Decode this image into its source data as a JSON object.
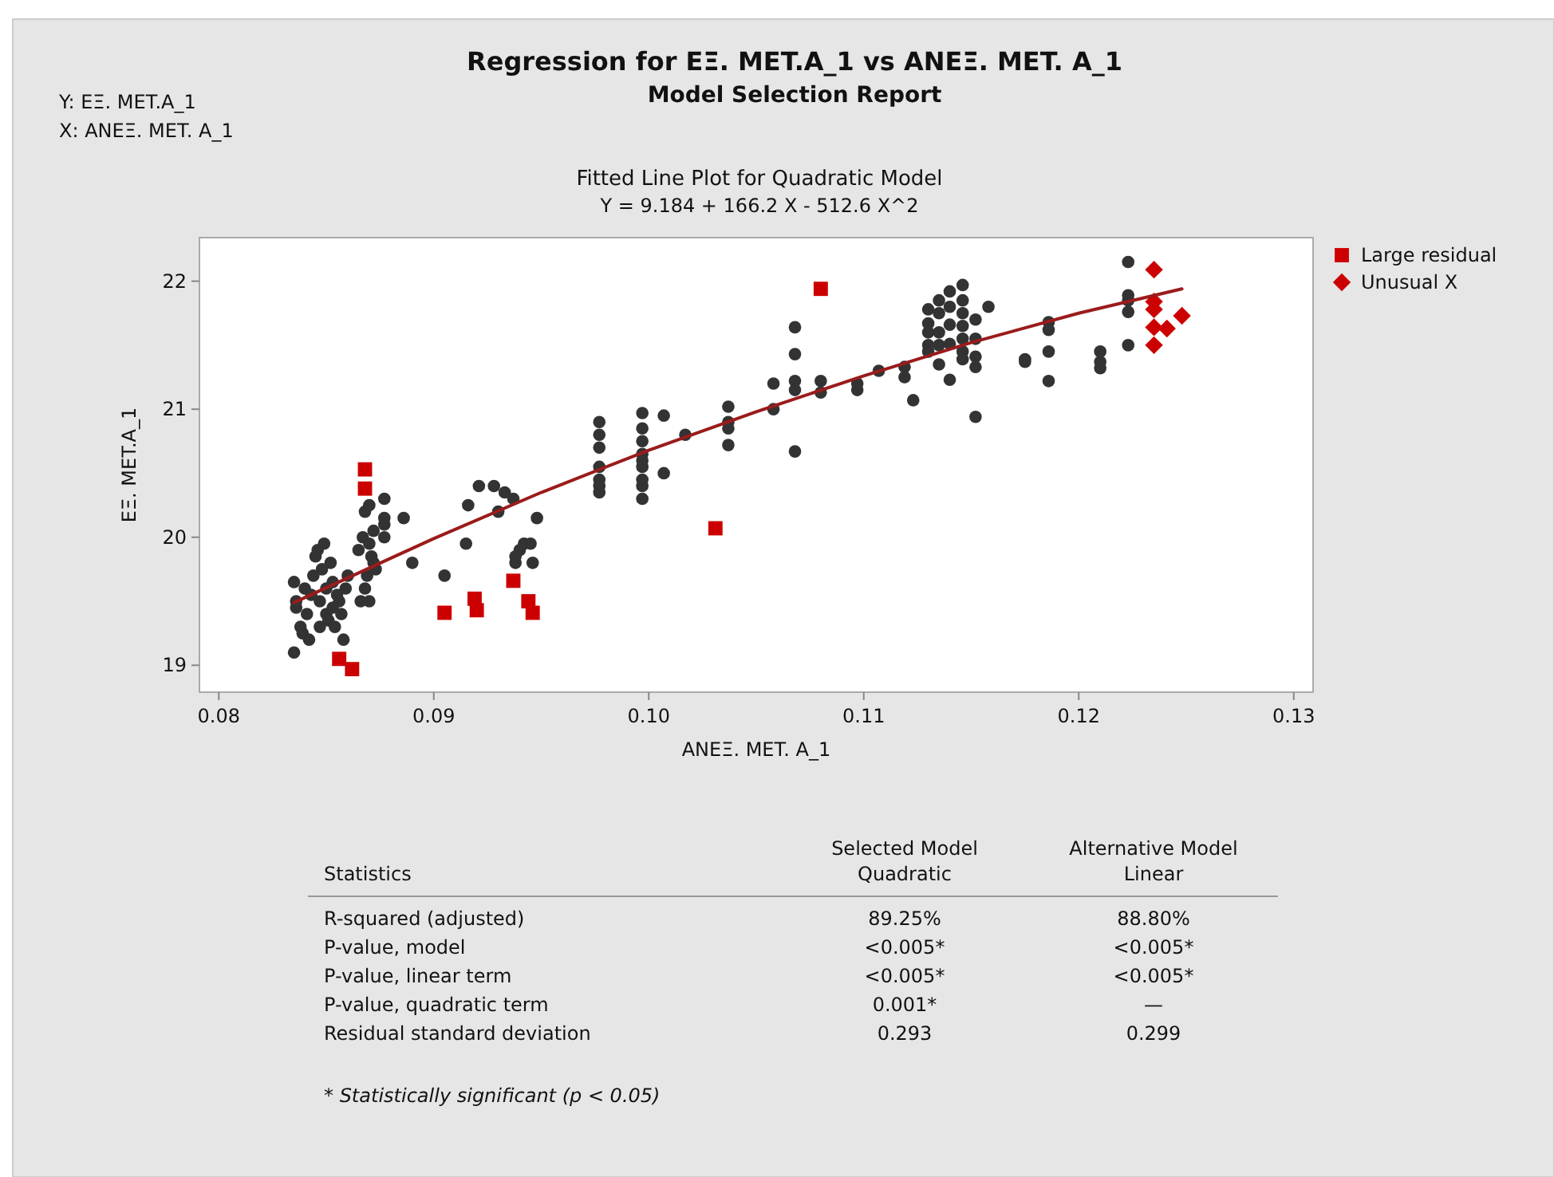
{
  "chart_data": {
    "type": "scatter",
    "title": "Regression for ΕΞ. MET.A_1 vs ΑΝΕΞ. MET. A_1",
    "subtitle": "Model Selection Report",
    "xlabel": "ΑΝΕΞ. MET. A_1",
    "ylabel": "ΕΞ. MET.A_1",
    "xlim": [
      0.0791,
      0.1309
    ],
    "ylim": [
      18.79,
      22.34
    ],
    "xticks": [
      0.08,
      0.09,
      {
        "value": 0.1,
        "label": "0.10"
      },
      0.11,
      0.12,
      0.13
    ],
    "yticks": [
      19,
      20,
      21,
      22
    ],
    "grid": false,
    "legend": "top right",
    "annotations": [
      "Y: ΕΞ. MET.A_1",
      "X: ΑΝΕΞ. MET. A_1",
      "Fitted Line Plot for Quadratic Model",
      "Y = 9.184 + 166.2 X - 512.6 X^2",
      "Statistics",
      "Selected Model\nQuadratic",
      "Alternative Model\nLinear",
      "R-squared (adjusted)",
      "89.25%",
      "88.80%",
      "P-value, model",
      "<0.005*",
      "<0.005*",
      "P-value, linear term",
      "<0.005*",
      "<0.005*",
      "P-value, quadratic term",
      "0.001*",
      "—",
      "Residual standard deviation",
      "0.293",
      "0.299",
      "* Statistically significant (p < 0.05)"
    ],
    "series": [
      {
        "marker": "circle",
        "color": "#333333",
        "x": [
          0.0835,
          0.0836,
          0.0836,
          0.0835,
          0.0838,
          0.0839,
          0.084,
          0.0841,
          0.0842,
          0.0843,
          0.0844,
          0.0845,
          0.0846,
          0.0847,
          0.0847,
          0.0848,
          0.0849,
          0.085,
          0.085,
          0.0851,
          0.0852,
          0.0853,
          0.0853,
          0.0854,
          0.0855,
          0.0856,
          0.0857,
          0.0858,
          0.0859,
          0.086,
          0.0865,
          0.0866,
          0.0867,
          0.0868,
          0.0868,
          0.0869,
          0.087,
          0.087,
          0.0871,
          0.0872,
          0.0872,
          0.087,
          0.0873,
          0.0877,
          0.0877,
          0.0877,
          0.0877,
          0.0886,
          0.089,
          0.0905,
          0.0916,
          0.0921,
          0.0928,
          0.0933,
          0.0937,
          0.0915,
          0.093,
          0.0938,
          0.094,
          0.0942,
          0.0945,
          0.0938,
          0.0946,
          0.0948,
          0.0977,
          0.0977,
          0.0977,
          0.0977,
          0.0977,
          0.0977,
          0.0977,
          0.0997,
          0.0997,
          0.0997,
          0.0997,
          0.0997,
          0.0997,
          0.0997,
          0.0997,
          0.0997,
          0.1007,
          0.1007,
          0.1017,
          0.1037,
          0.1037,
          0.1037,
          0.1037,
          0.1058,
          0.1058,
          0.1068,
          0.1068,
          0.1068,
          0.1068,
          0.1068,
          0.108,
          0.108,
          0.1097,
          0.1097,
          0.1107,
          0.1119,
          0.1119,
          0.1123,
          0.113,
          0.113,
          0.113,
          0.113,
          0.113,
          0.1135,
          0.1135,
          0.1135,
          0.1135,
          0.1135,
          0.114,
          0.114,
          0.114,
          0.114,
          0.114,
          0.1146,
          0.1146,
          0.1146,
          0.1146,
          0.1146,
          0.1146,
          0.1146,
          0.1152,
          0.1152,
          0.1152,
          0.1152,
          0.1152,
          0.1158,
          0.1175,
          0.1175,
          0.1186,
          0.1186,
          0.1186,
          0.1186,
          0.121,
          0.121,
          0.121,
          0.1223,
          0.1223,
          0.1223,
          0.1223,
          0.1223
        ],
        "values": [
          19.1,
          19.45,
          19.5,
          19.65,
          19.3,
          19.25,
          19.6,
          19.4,
          19.2,
          19.55,
          19.7,
          19.85,
          19.9,
          19.3,
          19.5,
          19.75,
          19.95,
          19.4,
          19.6,
          19.35,
          19.8,
          19.45,
          19.65,
          19.3,
          19.55,
          19.5,
          19.4,
          19.2,
          19.6,
          19.7,
          19.9,
          19.5,
          20.0,
          19.6,
          20.2,
          19.7,
          19.95,
          20.25,
          19.85,
          19.8,
          20.05,
          19.5,
          19.75,
          20.3,
          20.15,
          20.1,
          20.0,
          20.15,
          19.8,
          19.7,
          20.25,
          20.4,
          20.4,
          20.35,
          20.3,
          19.95,
          20.2,
          19.85,
          19.9,
          19.95,
          19.95,
          19.8,
          19.8,
          20.15,
          20.9,
          20.8,
          20.7,
          20.55,
          20.45,
          20.35,
          20.4,
          20.97,
          20.85,
          20.75,
          20.65,
          20.6,
          20.4,
          20.3,
          20.45,
          20.55,
          20.95,
          20.5,
          20.8,
          21.02,
          20.9,
          20.85,
          20.72,
          21.2,
          21.0,
          21.64,
          21.43,
          21.22,
          21.15,
          20.67,
          21.22,
          21.13,
          21.2,
          21.15,
          21.3,
          21.33,
          21.25,
          21.07,
          21.78,
          21.67,
          21.6,
          21.5,
          21.45,
          21.85,
          21.75,
          21.6,
          21.5,
          21.35,
          21.92,
          21.8,
          21.66,
          21.51,
          21.23,
          21.97,
          21.85,
          21.75,
          21.65,
          21.55,
          21.45,
          21.39,
          21.7,
          21.55,
          21.41,
          21.33,
          20.94,
          21.8,
          21.39,
          21.37,
          21.68,
          21.62,
          21.45,
          21.22,
          21.45,
          21.37,
          21.32,
          22.15,
          21.89,
          21.85,
          21.76,
          21.5
        ]
      },
      {
        "name": "Large residual",
        "marker": "square",
        "color": "#cc0000",
        "x": [
          0.0868,
          0.0868,
          0.0856,
          0.0862,
          0.0905,
          0.0919,
          0.092,
          0.0937,
          0.0944,
          0.0946,
          0.108,
          0.1031
        ],
        "values": [
          20.53,
          20.38,
          19.05,
          18.97,
          19.41,
          19.52,
          19.43,
          19.66,
          19.5,
          19.41,
          21.94,
          20.07
        ]
      },
      {
        "name": "Unusual X",
        "marker": "diamond",
        "color": "#cc0000",
        "x": [
          0.1235,
          0.1235,
          0.1235,
          0.1235,
          0.1241,
          0.1248,
          0.1235
        ],
        "values": [
          22.09,
          21.84,
          21.78,
          21.64,
          21.63,
          21.73,
          21.5
        ]
      },
      {
        "type": "line",
        "marker": "none",
        "line_style": "solid",
        "color": "#9b1b1b",
        "x": [
          0.0835,
          0.09,
          0.095,
          0.1,
          0.105,
          0.11,
          0.115,
          0.12,
          0.1248
        ],
        "values": [
          19.49,
          19.99,
          20.35,
          20.68,
          20.98,
          21.26,
          21.52,
          21.75,
          21.94
        ]
      }
    ]
  }
}
